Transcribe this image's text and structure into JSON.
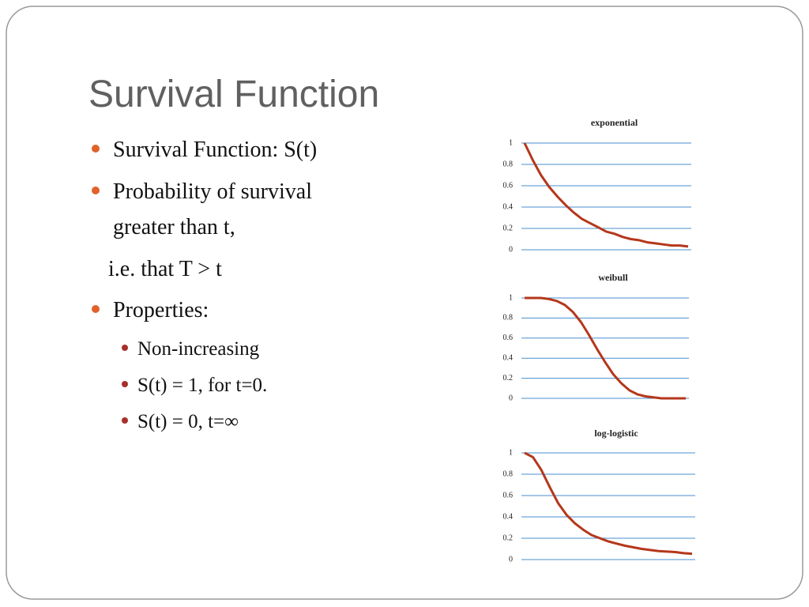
{
  "slide": {
    "title": "Survival Function",
    "bullets": [
      [
        "Survival Function: S(t)"
      ],
      [
        "Probability of survival",
        "greater than t,"
      ],
      [
        "Properties:"
      ]
    ],
    "note": "i.e. that T > t",
    "sub_bullets": [
      "Non-increasing",
      "S(t) = 1, for t=0.",
      "S(t) = 0, t=∞"
    ]
  },
  "chart_data": [
    {
      "type": "line",
      "title": "exponential",
      "color": "#b5371b",
      "grid": true,
      "grid_color": "#4a8fd0",
      "ylim": [
        0,
        1
      ],
      "yticks": [
        0,
        0.2,
        0.4,
        0.6,
        0.8,
        1
      ],
      "values": [
        1,
        0.84,
        0.7,
        0.59,
        0.5,
        0.42,
        0.35,
        0.29,
        0.25,
        0.21,
        0.17,
        0.15,
        0.12,
        0.1,
        0.09,
        0.07,
        0.06,
        0.05,
        0.04,
        0.04,
        0.03
      ]
    },
    {
      "type": "line",
      "title": "weibull",
      "color": "#b5371b",
      "grid": true,
      "grid_color": "#4a8fd0",
      "ylim": [
        0,
        1
      ],
      "yticks": [
        0,
        0.2,
        0.4,
        0.6,
        0.8,
        1
      ],
      "values": [
        1,
        1,
        1,
        0.99,
        0.97,
        0.93,
        0.86,
        0.76,
        0.63,
        0.49,
        0.36,
        0.24,
        0.15,
        0.08,
        0.04,
        0.02,
        0.01,
        0,
        0,
        0,
        0
      ]
    },
    {
      "type": "line",
      "title": "log-logistic",
      "color": "#b5371b",
      "grid": true,
      "grid_color": "#4a8fd0",
      "ylim": [
        0,
        1
      ],
      "yticks": [
        0,
        0.2,
        0.4,
        0.6,
        0.8,
        1
      ],
      "values": [
        1,
        0.96,
        0.84,
        0.68,
        0.53,
        0.42,
        0.34,
        0.28,
        0.23,
        0.2,
        0.17,
        0.15,
        0.13,
        0.115,
        0.1,
        0.09,
        0.08,
        0.075,
        0.07,
        0.06,
        0.055
      ]
    }
  ]
}
